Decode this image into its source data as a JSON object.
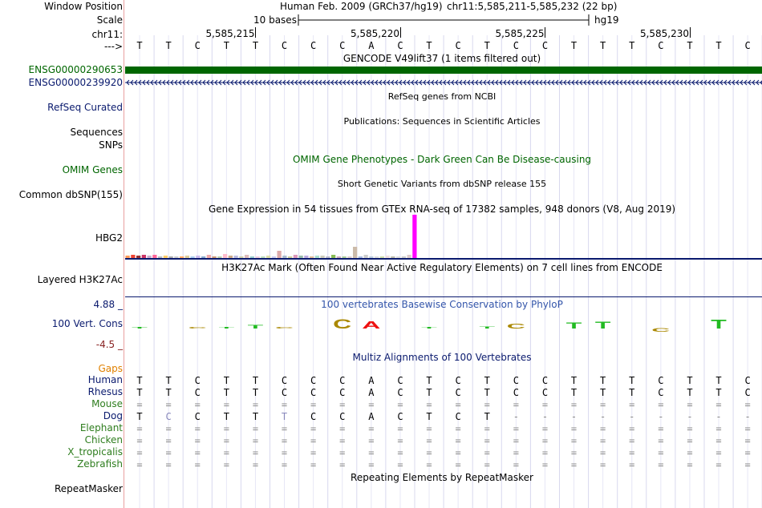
{
  "labels": {
    "window_position": "Window Position",
    "scale": "Scale",
    "chr": "chr11:",
    "arrow": "--->",
    "gene1": "ENSG00000290653",
    "gene2": "ENSG00000239920",
    "refseq": "RefSeq Curated",
    "sequences": "Sequences",
    "snps": "SNPs",
    "omim": "OMIM Genes",
    "dbsnp": "Common dbSNP(155)",
    "hbg2": "HBG2",
    "h3k27ac": "Layered H3K27Ac",
    "phylo_max": "4.88 _",
    "phylo_label": "100 Vert. Cons",
    "phylo_min": "-4.5 _",
    "gaps": "Gaps",
    "repeatmasker": "RepeatMasker"
  },
  "header": {
    "assembly": "Human Feb. 2009 (GRCh37/hg19)",
    "position": "chr11:5,585,211-5,585,232 (22 bp)",
    "scale_text": "10 bases",
    "scale_db": "hg19",
    "ticks": [
      "5,585,215",
      "5,585,220",
      "5,585,225",
      "5,585,230"
    ]
  },
  "tracks": {
    "gencode": "GENCODE V49lift37 (1 items filtered out)",
    "refseq": "RefSeq genes from NCBI",
    "publications": "Publications: Sequences in Scientific Articles",
    "omim": "OMIM Gene Phenotypes - Dark Green Can Be Disease-causing",
    "dbsnp": "Short Genetic Variants from dbSNP release 155",
    "gtex": "Gene Expression in 54 tissues from GTEx RNA-seq of 17382 samples, 948 donors (V8, Aug 2019)",
    "h3k27ac": "H3K27Ac Mark (Often Found Near Active Regulatory Elements) on 7 cell lines from ENCODE",
    "phylop": "100 vertebrates Basewise Conservation by PhyloP",
    "multiz": "Multiz Alignments of 100 Vertebrates",
    "repeatmasker": "Repeating Elements by RepeatMasker"
  },
  "bases": [
    "T",
    "T",
    "C",
    "T",
    "T",
    "C",
    "C",
    "C",
    "A",
    "C",
    "T",
    "C",
    "T",
    "C",
    "C",
    "T",
    "T",
    "T",
    "C",
    "T",
    "T",
    "C"
  ],
  "species": [
    {
      "name": "Human",
      "color": "#0a1a6e",
      "seq": [
        "T",
        "T",
        "C",
        "T",
        "T",
        "C",
        "C",
        "C",
        "A",
        "C",
        "T",
        "C",
        "T",
        "C",
        "C",
        "T",
        "T",
        "T",
        "C",
        "T",
        "T",
        "C"
      ]
    },
    {
      "name": "Rhesus",
      "color": "#0a1a6e",
      "seq": [
        "T",
        "T",
        "C",
        "T",
        "T",
        "C",
        "C",
        "C",
        "A",
        "C",
        "T",
        "C",
        "T",
        "C",
        "C",
        "T",
        "T",
        "T",
        "C",
        "T",
        "T",
        "C"
      ]
    },
    {
      "name": "Mouse",
      "color": "#2e7d1e",
      "seq": [
        "=",
        "=",
        "=",
        "=",
        "=",
        "=",
        "=",
        "=",
        "=",
        "=",
        "=",
        "=",
        "=",
        "=",
        "=",
        "=",
        "=",
        "=",
        "=",
        "=",
        "=",
        "="
      ]
    },
    {
      "name": "Dog",
      "color": "#0a1a6e",
      "seq": [
        "T",
        "C",
        "C",
        "T",
        "T",
        "T",
        "C",
        "C",
        "A",
        "C",
        "T",
        "C",
        "T",
        "-",
        "-",
        "-",
        "-",
        "-",
        "-",
        "-",
        "-",
        "-"
      ]
    },
    {
      "name": "Elephant",
      "color": "#2e7d1e",
      "seq": [
        "=",
        "=",
        "=",
        "=",
        "=",
        "=",
        "=",
        "=",
        "=",
        "=",
        "=",
        "=",
        "=",
        "=",
        "=",
        "=",
        "=",
        "=",
        "=",
        "=",
        "=",
        "="
      ]
    },
    {
      "name": "Chicken",
      "color": "#2e7d1e",
      "seq": [
        "=",
        "=",
        "=",
        "=",
        "=",
        "=",
        "=",
        "=",
        "=",
        "=",
        "=",
        "=",
        "=",
        "=",
        "=",
        "=",
        "=",
        "=",
        "=",
        "=",
        "=",
        "="
      ]
    },
    {
      "name": "X_tropicalis",
      "color": "#2e7d1e",
      "seq": [
        "=",
        "=",
        "=",
        "=",
        "=",
        "=",
        "=",
        "=",
        "=",
        "=",
        "=",
        "=",
        "=",
        "=",
        "=",
        "=",
        "=",
        "=",
        "=",
        "=",
        "=",
        "="
      ]
    },
    {
      "name": "Zebrafish",
      "color": "#2e7d1e",
      "seq": [
        "=",
        "=",
        "=",
        "=",
        "=",
        "=",
        "=",
        "=",
        "=",
        "=",
        "=",
        "=",
        "=",
        "=",
        "=",
        "=",
        "=",
        "=",
        "=",
        "=",
        "=",
        "="
      ]
    }
  ],
  "gtex_values": [
    3,
    4,
    3,
    4,
    3,
    4,
    2,
    3,
    2,
    2,
    2,
    3,
    2,
    3,
    2,
    4,
    2,
    2,
    5,
    3,
    3,
    2,
    4,
    2,
    2,
    2,
    3,
    2,
    9,
    3,
    2,
    4,
    3,
    3,
    2,
    3,
    3,
    2,
    4,
    2,
    2,
    2,
    14,
    2,
    4,
    2,
    2,
    2,
    3,
    1,
    2,
    2,
    4,
    54
  ],
  "gtex_colors": [
    "#ff9955",
    "#ee4433",
    "#993333",
    "#cc3366",
    "#ccaacc",
    "#ff6699",
    "#bbbbbb",
    "#ffcc66",
    "#aaaaaa",
    "#cccccc",
    "#ffaa66",
    "#ddcc99",
    "#aaccee",
    "#ccbbee",
    "#88aacc",
    "#eeaaaa",
    "#cc9977",
    "#bbccaa",
    "#ffbbcc",
    "#ccaa88",
    "#bbbbdd",
    "#ccccaa",
    "#ddbbbb",
    "#99cccc",
    "#eeccdd",
    "#bbddbb",
    "#ddddaa",
    "#ccccee",
    "#ddaaaa",
    "#aabbcc",
    "#cccc99",
    "#dd99bb",
    "#99bbaa",
    "#bbaadd",
    "#ddbb99",
    "#aaddcc",
    "#ccccbb",
    "#bbbbcc",
    "#88bb55",
    "#ccaabb",
    "#aacc99",
    "#ddcccc",
    "#ccbbaa",
    "#aabbdd",
    "#cccccc",
    "#bbccdd",
    "#dddddd",
    "#ccddaa",
    "#eedddd",
    "#bbbbaa",
    "#dddddd",
    "#cccccc",
    "#ddcccc",
    "#ff00ff"
  ],
  "phylop_glyphs": [
    {
      "i": 0,
      "letter": "T",
      "score": 0.5
    },
    {
      "i": 2,
      "letter": "C",
      "score": 0.2
    },
    {
      "i": 3,
      "letter": "T",
      "score": 0.3
    },
    {
      "i": 4,
      "letter": "T",
      "score": 1.0
    },
    {
      "i": 5,
      "letter": "C",
      "score": 0.2
    },
    {
      "i": 7,
      "letter": "C",
      "score": 2.7
    },
    {
      "i": 8,
      "letter": "A",
      "score": 2.2
    },
    {
      "i": 10,
      "letter": "T",
      "score": 0.3
    },
    {
      "i": 12,
      "letter": "T",
      "score": 0.6
    },
    {
      "i": 13,
      "letter": "C",
      "score": 1.4
    },
    {
      "i": 15,
      "letter": "T",
      "score": 1.9
    },
    {
      "i": 16,
      "letter": "T",
      "score": 2.0
    },
    {
      "i": 18,
      "letter": "C",
      "score": -1.0
    },
    {
      "i": 20,
      "letter": "T",
      "score": 2.6
    }
  ],
  "colors": {
    "ensembl_green": "#006600",
    "navy": "#0a1a6e",
    "omim_green": "#006600",
    "phylo_blue": "#3355aa",
    "gaps_orange": "#e08000"
  }
}
